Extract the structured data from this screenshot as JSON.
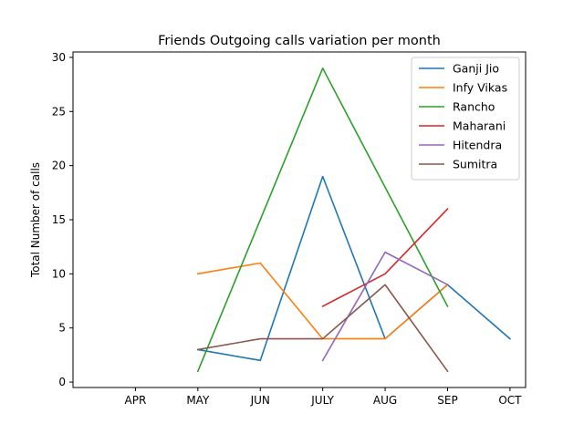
{
  "chart_data": {
    "type": "line",
    "title": "Friends Outgoing calls variation per month",
    "xlabel": "",
    "ylabel": "Total Number of calls",
    "categories": [
      "APR",
      "MAY",
      "JUN",
      "JULY",
      "AUG",
      "SEP",
      "OCT"
    ],
    "xlim": [
      -1,
      6.25
    ],
    "ylim": [
      -0.5,
      30.5
    ],
    "yticks": [
      0,
      5,
      10,
      15,
      20,
      25,
      30
    ],
    "grid": false,
    "legend_position": "top-right",
    "series": [
      {
        "name": "Ganji Jio",
        "color": "#1f77b4",
        "points": [
          [
            "MAY",
            3
          ],
          [
            "JUN",
            2
          ],
          [
            "JULY",
            19
          ],
          [
            "AUG",
            4
          ],
          [
            "SEP",
            9
          ],
          [
            "OCT",
            4
          ]
        ]
      },
      {
        "name": "Infy Vikas",
        "color": "#ff7f0e",
        "points": [
          [
            "MAY",
            10
          ],
          [
            "JUN",
            11
          ],
          [
            "JULY",
            4
          ],
          [
            "AUG",
            4
          ],
          [
            "SEP",
            9
          ]
        ]
      },
      {
        "name": "Rancho",
        "color": "#2ca02c",
        "points": [
          [
            "MAY",
            1
          ],
          [
            "JULY",
            29
          ],
          [
            "SEP",
            7
          ]
        ]
      },
      {
        "name": "Maharani",
        "color": "#d62728",
        "points": [
          [
            "JULY",
            7
          ],
          [
            "AUG",
            10
          ],
          [
            "SEP",
            16
          ]
        ]
      },
      {
        "name": "Hitendra",
        "color": "#9467bd",
        "points": [
          [
            "JULY",
            2
          ],
          [
            "AUG",
            12
          ],
          [
            "SEP",
            9
          ]
        ]
      },
      {
        "name": "Sumitra",
        "color": "#8c564b",
        "points": [
          [
            "MAY",
            3
          ],
          [
            "JUN",
            4
          ],
          [
            "JULY",
            4
          ],
          [
            "AUG",
            9
          ],
          [
            "SEP",
            1
          ]
        ]
      }
    ]
  }
}
